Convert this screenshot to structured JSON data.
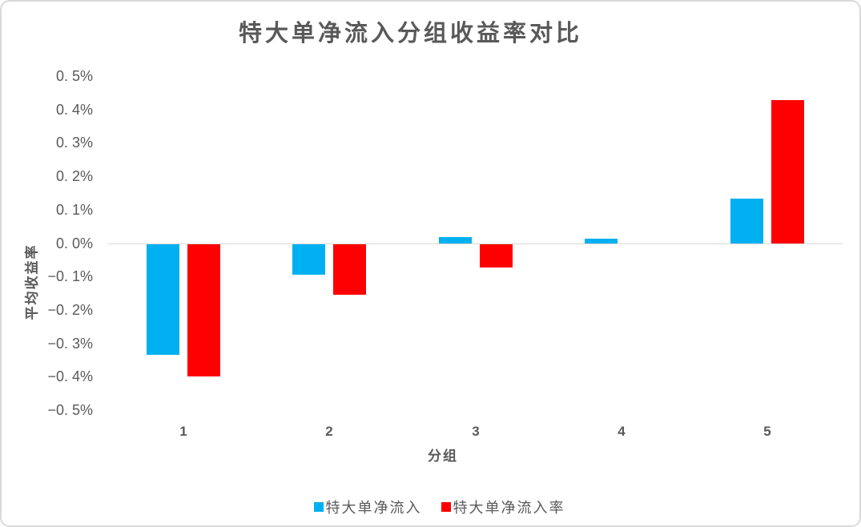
{
  "chart_data": {
    "type": "bar",
    "title": "特大单净流入分组收益率对比",
    "xlabel": "分组",
    "ylabel": "平均收益率",
    "categories": [
      "1",
      "2",
      "3",
      "4",
      "5"
    ],
    "series": [
      {
        "name": "特大单净流入",
        "color": "#00B0F0",
        "values": [
          -0.33,
          -0.09,
          0.02,
          0.015,
          0.135
        ]
      },
      {
        "name": "特大单净流入率",
        "color": "#FF0000",
        "values": [
          -0.395,
          -0.15,
          -0.07,
          0.0,
          0.43
        ]
      }
    ],
    "ylim": [
      -0.5,
      0.5
    ],
    "ytick_step": 0.1,
    "ytick_labels": [
      "0. 5%",
      "0. 4%",
      "0. 3%",
      "0. 2%",
      "0. 1%",
      "0. 0%",
      "−0. 1%",
      "−0. 2%",
      "−0. 3%",
      "−0. 4%",
      "−0. 5%"
    ],
    "unit": "percent",
    "grid": false,
    "legend_position": "bottom",
    "colors": {
      "axis_text": "#595959",
      "axis_line": "#D9D9D9",
      "frame_border": "#D9D9D9"
    }
  }
}
